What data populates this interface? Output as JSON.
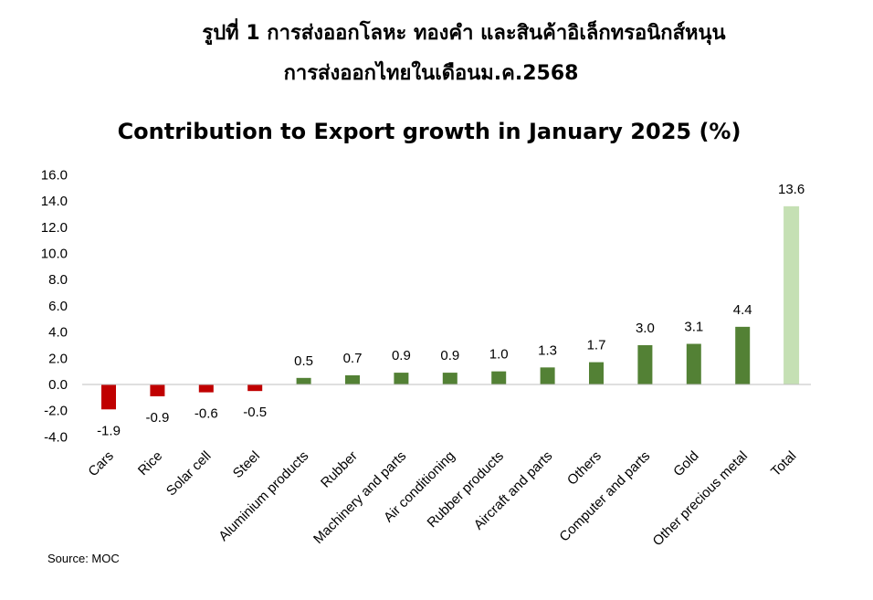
{
  "header": {
    "thai_line1": "รูปที่ 1 การส่งออกโลหะ ทองคำ และสินค้าอิเล็กทรอนิกส์หนุน",
    "thai_line2": "การส่งออกไทยในเดือนม.ค.2568"
  },
  "source": "Source: MOC",
  "chart_data": {
    "type": "bar",
    "title": "Contribution to Export growth in January 2025 (%)",
    "categories": [
      "Cars",
      "Rice",
      "Solar cell",
      "Steel",
      "Aluminium products",
      "Rubber",
      "Machinery and parts",
      "Air conditioning",
      "Rubber products",
      "Aircraft and parts",
      "Others",
      "Computer and parts",
      "Gold",
      "Other precious metal",
      "Total"
    ],
    "values": [
      -1.9,
      -0.9,
      -0.6,
      -0.5,
      0.5,
      0.7,
      0.9,
      0.9,
      1.0,
      1.3,
      1.7,
      3.0,
      3.1,
      4.4,
      13.6
    ],
    "data_labels": [
      "-1.9",
      "-0.9",
      "-0.6",
      "-0.5",
      "0.5",
      "0.7",
      "0.9",
      "0.9",
      "1.0",
      "1.3",
      "1.7",
      "3.0",
      "3.1",
      "4.4",
      "13.6"
    ],
    "yticks": [
      "16.0",
      "14.0",
      "12.0",
      "10.0",
      "8.0",
      "6.0",
      "4.0",
      "2.0",
      "0.0",
      "-2.0",
      "-4.0"
    ],
    "ylim": [
      -4,
      16
    ],
    "grid": false,
    "colors": {
      "negative": "#c00000",
      "positive": "#538135",
      "total": "#c5e0b4"
    }
  }
}
